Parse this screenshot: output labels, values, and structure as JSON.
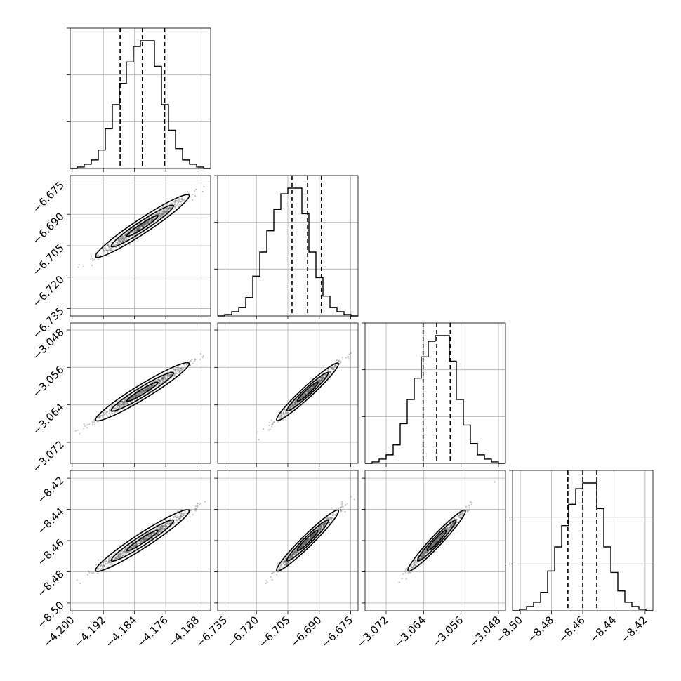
{
  "chart_data": {
    "type": "corner",
    "grid": true,
    "parameters": [
      {
        "range": [
          -4.2005,
          -4.1645
        ],
        "ticks": [
          -4.2,
          -4.192,
          -4.184,
          -4.176,
          -4.168
        ],
        "tick_labels": [
          "−4.200",
          "−4.192",
          "−4.184",
          "−4.176",
          "−4.168"
        ],
        "quantiles": [
          -4.1877,
          -4.182,
          -4.1763
        ],
        "hist": [
          0,
          1,
          3,
          6,
          13,
          28,
          45,
          60,
          75,
          86,
          90,
          90,
          72,
          45,
          27,
          14,
          6,
          3,
          1,
          0
        ]
      },
      {
        "range": [
          -6.7385,
          -6.6715
        ],
        "ticks": [
          -6.735,
          -6.72,
          -6.705,
          -6.69,
          -6.675
        ],
        "tick_labels": [
          "−6.735",
          "−6.720",
          "−6.705",
          "−6.690",
          "−6.675"
        ],
        "quantiles": [
          -6.703,
          -6.6956,
          -6.689
        ],
        "hist": [
          0,
          1,
          3,
          6,
          13,
          28,
          45,
          60,
          75,
          86,
          90,
          90,
          72,
          45,
          27,
          14,
          6,
          3,
          1,
          0
        ]
      },
      {
        "range": [
          -3.0765,
          -3.0465
        ],
        "ticks": [
          -3.072,
          -3.064,
          -3.056,
          -3.048
        ],
        "tick_labels": [
          "−3.072",
          "−3.064",
          "−3.056",
          "−3.048"
        ],
        "quantiles": [
          -3.0641,
          -3.0612,
          -3.0583
        ],
        "hist": [
          0,
          1,
          3,
          6,
          13,
          28,
          45,
          60,
          75,
          86,
          90,
          90,
          72,
          45,
          27,
          14,
          6,
          3,
          1,
          0
        ]
      },
      {
        "range": [
          -8.505,
          -8.415
        ],
        "ticks": [
          -8.5,
          -8.48,
          -8.46,
          -8.44,
          -8.42
        ],
        "tick_labels": [
          "−8.50",
          "−8.48",
          "−8.46",
          "−8.44",
          "−8.42"
        ],
        "quantiles": [
          -8.4695,
          -8.46,
          -8.451
        ],
        "hist": [
          0,
          1,
          3,
          6,
          13,
          28,
          45,
          60,
          75,
          86,
          90,
          90,
          72,
          45,
          27,
          14,
          6,
          3,
          1,
          0
        ]
      }
    ],
    "hist_yticks": [
      30,
      60,
      90
    ]
  },
  "colors": {
    "ink": "#000000",
    "scatter": "#555555",
    "grid": "#b0b0b0",
    "density_fill": "#bdbdbd"
  }
}
